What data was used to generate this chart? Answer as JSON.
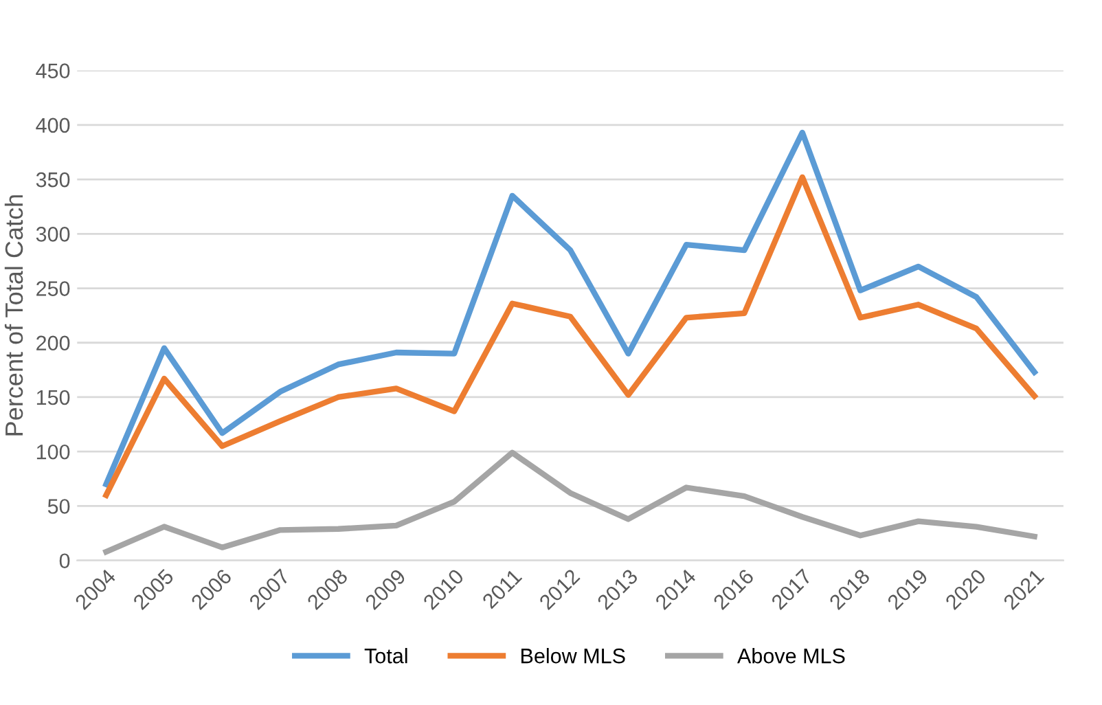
{
  "chart_data": {
    "type": "line",
    "ylabel": "Percent of Total Catch",
    "categories": [
      "2004",
      "2005",
      "2006",
      "2007",
      "2008",
      "2009",
      "2010",
      "2011",
      "2012",
      "2013",
      "2014",
      "2016",
      "2017",
      "2018",
      "2019",
      "2020",
      "2021"
    ],
    "series": [
      {
        "name": "Total",
        "color": "#5b9bd5",
        "values": [
          70,
          195,
          117,
          155,
          180,
          191,
          190,
          335,
          285,
          190,
          290,
          285,
          393,
          248,
          270,
          242,
          173
        ]
      },
      {
        "name": "Below MLS",
        "color": "#ed7d31",
        "values": [
          60,
          167,
          105,
          128,
          150,
          158,
          137,
          236,
          224,
          152,
          223,
          227,
          352,
          223,
          235,
          213,
          151
        ]
      },
      {
        "name": "Above MLS",
        "color": "#a5a5a5",
        "values": [
          8,
          31,
          12,
          28,
          29,
          32,
          54,
          99,
          62,
          38,
          67,
          59,
          40,
          23,
          36,
          31,
          22
        ]
      }
    ],
    "ylim": [
      0,
      450
    ],
    "yticks": [
      0,
      50,
      100,
      150,
      200,
      250,
      300,
      350,
      400,
      450
    ],
    "grid": "y",
    "legend": "bottom",
    "marker": "none",
    "line_style": "solid"
  }
}
